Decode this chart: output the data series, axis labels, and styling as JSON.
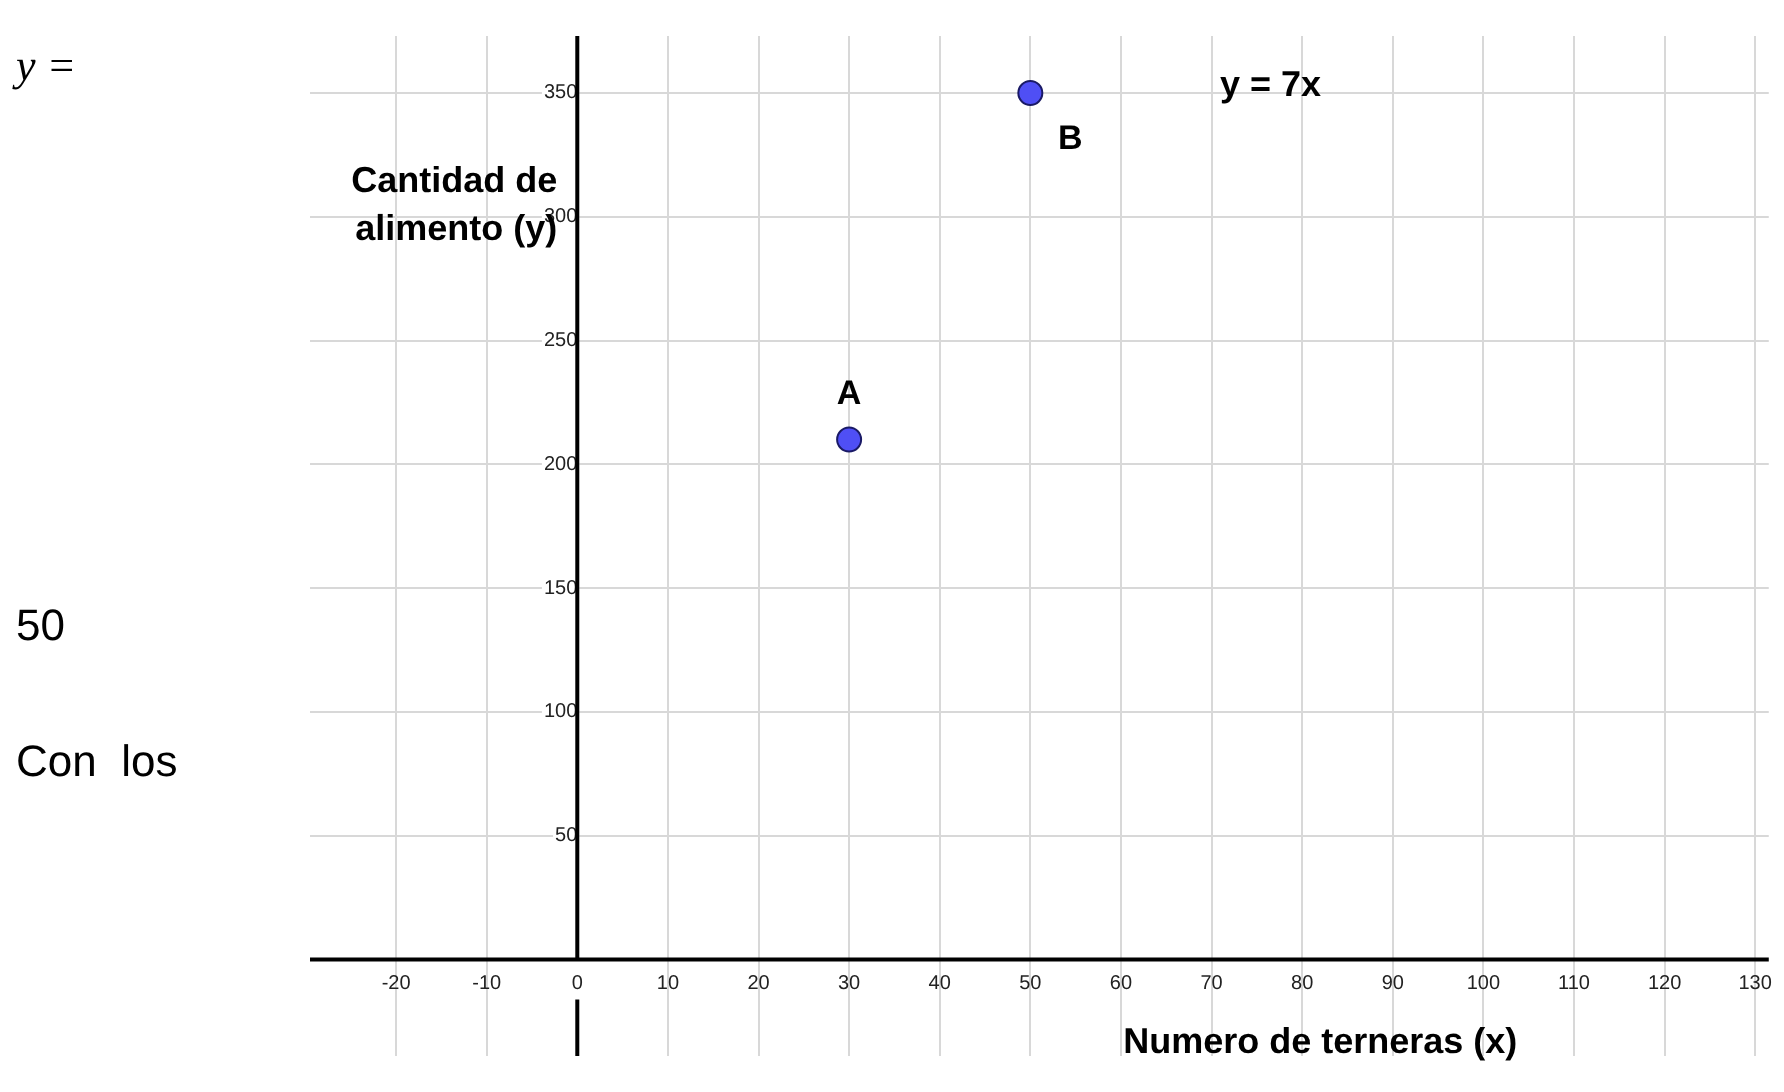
{
  "chart_data": {
    "type": "scatter",
    "xlabel": "Numero de terneras (x)",
    "ylabel": "Cantidad de alimento (y)",
    "x": [
      30,
      50
    ],
    "values": [
      210,
      350
    ],
    "color": "#4f4ff5",
    "marker": "circle",
    "grid": true,
    "xlim": [
      -29.5,
      131.5
    ],
    "ylim": [
      -39,
      373
    ],
    "xticks": [
      -20,
      -10,
      0,
      10,
      20,
      30,
      40,
      50,
      60,
      70,
      80,
      90,
      100,
      110,
      120,
      130
    ],
    "yticks": [
      50,
      100,
      150,
      200,
      250,
      300,
      350
    ],
    "annotations": [
      {
        "text": "A",
        "x": 30,
        "y": 210
      },
      {
        "text": "B",
        "x": 50,
        "y": 350
      },
      "y = 7x",
      "y =",
      "50",
      "Con  los"
    ]
  }
}
